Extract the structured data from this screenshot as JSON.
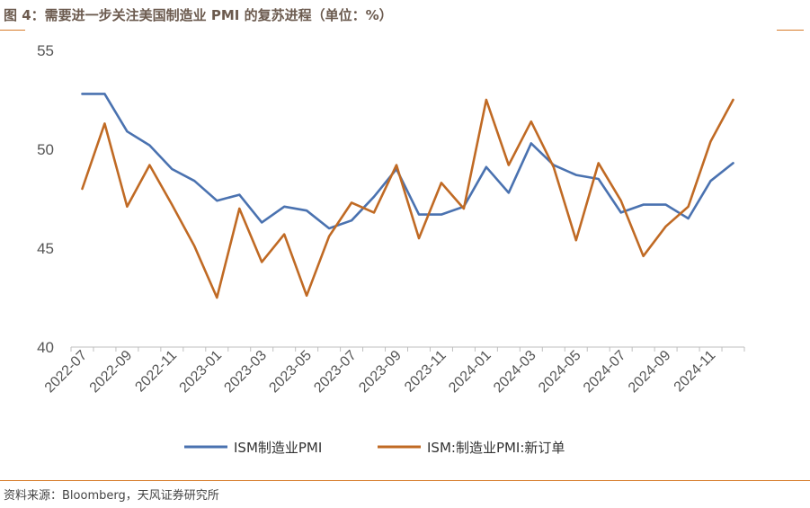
{
  "header": {
    "title": "图 4：需要进一步关注美国制造业 PMI 的复苏进程（单位：%）"
  },
  "footer": {
    "source": "资料来源：Bloomberg，天风证券研究所"
  },
  "chart_data": {
    "type": "line",
    "title": "图 4：需要进一步关注美国制造业 PMI 的复苏进程（单位：%）",
    "xlabel": "",
    "ylabel": "",
    "ylim": [
      40,
      55
    ],
    "yticks": [
      "40",
      "45",
      "50",
      "55"
    ],
    "grid": false,
    "legend_position": "bottom",
    "x": [
      "2022-07",
      "2022-08",
      "2022-09",
      "2022-10",
      "2022-11",
      "2022-12",
      "2023-01",
      "2023-02",
      "2023-03",
      "2023-04",
      "2023-05",
      "2023-06",
      "2023-07",
      "2023-08",
      "2023-09",
      "2023-10",
      "2023-11",
      "2023-12",
      "2024-01",
      "2024-02",
      "2024-03",
      "2024-04",
      "2024-05",
      "2024-06",
      "2024-07",
      "2024-08",
      "2024-09",
      "2024-10",
      "2024-11",
      "2024-12"
    ],
    "xtick_labels": [
      "2022-07",
      "2022-09",
      "2022-11",
      "2023-01",
      "2023-03",
      "2023-05",
      "2023-07",
      "2023-09",
      "2023-11",
      "2024-01",
      "2024-03",
      "2024-05",
      "2024-07",
      "2024-09",
      "2024-11"
    ],
    "series": [
      {
        "name": "ISM制造业PMI",
        "color": "#4a72b0",
        "values": [
          52.8,
          52.8,
          50.9,
          50.2,
          49.0,
          48.4,
          47.4,
          47.7,
          46.3,
          47.1,
          46.9,
          46.0,
          46.4,
          47.6,
          49.0,
          46.7,
          46.7,
          47.1,
          49.1,
          47.8,
          50.3,
          49.2,
          48.7,
          48.5,
          46.8,
          47.2,
          47.2,
          46.5,
          48.4,
          49.3
        ]
      },
      {
        "name": "ISM:制造业PMI:新订单",
        "color": "#c06a24",
        "values": [
          48.0,
          51.3,
          47.1,
          49.2,
          47.2,
          45.1,
          42.5,
          47.0,
          44.3,
          45.7,
          42.6,
          45.6,
          47.3,
          46.8,
          49.2,
          45.5,
          48.3,
          47.0,
          52.5,
          49.2,
          51.4,
          49.1,
          45.4,
          49.3,
          47.4,
          44.6,
          46.1,
          47.1,
          50.4,
          52.5
        ]
      }
    ]
  }
}
